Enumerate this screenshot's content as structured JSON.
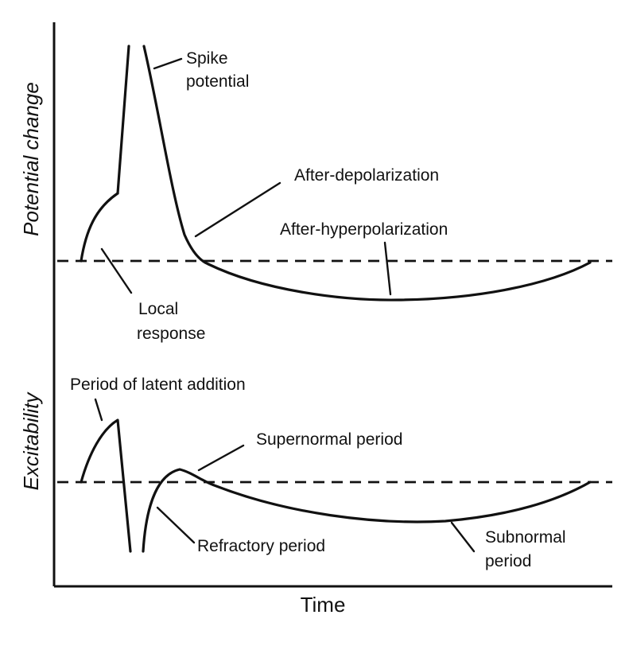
{
  "axes": {
    "x_label": "Time",
    "top_y_label": "Potential change",
    "bottom_y_label": "Excitability"
  },
  "top_panel": {
    "labels": {
      "spike_line1": "Spike",
      "spike_line2": "potential",
      "after_depolarization": "After-depolarization",
      "after_hyperpolarization": "After-hyperpolarization",
      "local_line1": "Local",
      "local_line2": "response"
    }
  },
  "bottom_panel": {
    "labels": {
      "latent_addition": "Period of latent addition",
      "supernormal": "Supernormal period",
      "refractory": "Refractory period",
      "subnormal_line1": "Subnormal",
      "subnormal_line2": "period"
    }
  }
}
